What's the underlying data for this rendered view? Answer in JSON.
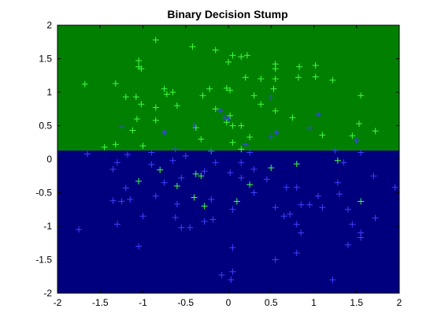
{
  "chart_data": {
    "type": "scatter",
    "title": "Binary Decision Stump",
    "xlim": [
      -2,
      2
    ],
    "ylim": [
      -2,
      2
    ],
    "x_ticks": [
      -2,
      -1.5,
      -1,
      -0.5,
      0,
      0.5,
      1,
      1.5,
      2
    ],
    "y_ticks": [
      -2,
      -1.5,
      -1,
      -0.5,
      0,
      0.5,
      1,
      1.5,
      2
    ],
    "x_tick_labels": [
      "-2",
      "-1.5",
      "-1",
      "-0.5",
      "0",
      "0.5",
      "1",
      "1.5",
      "2"
    ],
    "y_tick_labels": [
      "-2",
      "-1.5",
      "-1",
      "-0.5",
      "0",
      "0.5",
      "1",
      "1.5",
      "2"
    ],
    "marker": "+",
    "grid": false,
    "decision_threshold_y": 0.13,
    "regions": [
      {
        "y_range": [
          0.13,
          2
        ],
        "color": "#007f00"
      },
      {
        "y_range": [
          -2,
          0.13
        ],
        "color": "#00007f"
      }
    ],
    "series": [
      {
        "color": "#40ff40",
        "points": [
          [
            -0.85,
            1.78
          ],
          [
            -0.42,
            1.68
          ],
          [
            -0.15,
            1.63
          ],
          [
            0.0,
            1.45
          ],
          [
            0.05,
            1.55
          ],
          [
            0.15,
            1.53
          ],
          [
            0.22,
            1.55
          ],
          [
            -1.05,
            1.47
          ],
          [
            -1.05,
            1.38
          ],
          [
            -1.02,
            1.35
          ],
          [
            0.55,
            1.42
          ],
          [
            0.55,
            1.35
          ],
          [
            0.83,
            1.38
          ],
          [
            1.02,
            1.4
          ],
          [
            -1.68,
            1.12
          ],
          [
            -1.32,
            1.13
          ],
          [
            0.2,
            1.22
          ],
          [
            0.38,
            1.2
          ],
          [
            0.55,
            1.2
          ],
          [
            0.82,
            1.22
          ],
          [
            1.02,
            1.23
          ],
          [
            1.22,
            1.18
          ],
          [
            -0.75,
            1.05
          ],
          [
            -0.65,
            1.0
          ],
          [
            -0.22,
            1.05
          ],
          [
            -0.02,
            1.06
          ],
          [
            0.02,
            1.03
          ],
          [
            0.53,
            1.05
          ],
          [
            -0.72,
            0.97
          ],
          [
            -1.2,
            0.93
          ],
          [
            -1.08,
            0.93
          ],
          [
            -0.3,
            0.95
          ],
          [
            0.3,
            0.95
          ],
          [
            1.55,
            0.95
          ],
          [
            -1.02,
            0.82
          ],
          [
            -0.6,
            0.8
          ],
          [
            0.38,
            0.82
          ],
          [
            -0.85,
            0.77
          ],
          [
            -0.15,
            0.75
          ],
          [
            0.55,
            0.72
          ],
          [
            0.02,
            0.65
          ],
          [
            -1.07,
            0.6
          ],
          [
            -0.85,
            0.58
          ],
          [
            -0.02,
            0.55
          ],
          [
            0.05,
            0.5
          ],
          [
            -0.38,
            0.47
          ],
          [
            0.15,
            0.5
          ],
          [
            0.75,
            0.62
          ],
          [
            1.53,
            0.53
          ],
          [
            -1.12,
            0.43
          ],
          [
            -0.32,
            0.3
          ],
          [
            0.05,
            0.25
          ],
          [
            0.25,
            0.33
          ],
          [
            1.1,
            0.36
          ],
          [
            1.45,
            0.35
          ],
          [
            1.72,
            0.42
          ],
          [
            -1.45,
            0.18
          ],
          [
            -1.32,
            0.22
          ],
          [
            -1.0,
            0.2
          ],
          [
            -0.2,
            0.12
          ],
          [
            0.15,
            0.15
          ],
          [
            -0.8,
            -0.16
          ],
          [
            -0.38,
            -0.22
          ],
          [
            -0.32,
            -0.25
          ],
          [
            0.5,
            -0.13
          ],
          [
            0.8,
            -0.07
          ],
          [
            -1.05,
            -0.33
          ],
          [
            -0.6,
            -0.4
          ],
          [
            0.25,
            -0.38
          ],
          [
            -0.4,
            -0.57
          ],
          [
            -0.28,
            -0.7
          ],
          [
            0.1,
            -0.63
          ],
          [
            1.55,
            -0.63
          ],
          [
            1.28,
            -0.02
          ]
        ]
      },
      {
        "color": "#4040ff",
        "points": [
          [
            0.5,
            0.92
          ],
          [
            1.05,
            0.67
          ],
          [
            -0.1,
            0.72
          ],
          [
            0.0,
            0.6
          ],
          [
            -0.05,
            0.62
          ],
          [
            -1.25,
            0.48
          ],
          [
            0.95,
            0.47
          ],
          [
            -0.4,
            0.5
          ],
          [
            -0.75,
            0.4
          ],
          [
            0.5,
            0.33
          ],
          [
            0.56,
            0.4
          ],
          [
            0.2,
            0.22
          ],
          [
            -0.62,
            0.15
          ],
          [
            -0.9,
            0.1
          ],
          [
            -0.2,
            0.12
          ],
          [
            1.25,
            0.13
          ],
          [
            1.5,
            0.27
          ],
          [
            1.55,
            0.1
          ],
          [
            -1.65,
            0.08
          ],
          [
            -1.18,
            0.07
          ],
          [
            -0.5,
            0.05
          ],
          [
            0.25,
            0.1
          ],
          [
            -1.3,
            -0.05
          ],
          [
            -0.9,
            -0.08
          ],
          [
            -0.65,
            -0.02
          ],
          [
            -0.15,
            -0.05
          ],
          [
            0.15,
            -0.05
          ],
          [
            1.35,
            -0.05
          ],
          [
            -1.35,
            -0.15
          ],
          [
            -0.28,
            -0.18
          ],
          [
            0.02,
            -0.2
          ],
          [
            0.3,
            -0.15
          ],
          [
            -0.55,
            -0.28
          ],
          [
            0.15,
            -0.28
          ],
          [
            0.45,
            -0.3
          ],
          [
            -0.75,
            -0.35
          ],
          [
            -1.2,
            -0.43
          ],
          [
            0.68,
            -0.42
          ],
          [
            0.8,
            -0.42
          ],
          [
            1.28,
            -0.35
          ],
          [
            1.7,
            -0.25
          ],
          [
            1.95,
            -0.42
          ],
          [
            -0.85,
            -0.55
          ],
          [
            -1.35,
            -0.62
          ],
          [
            -1.25,
            -0.63
          ],
          [
            -1.15,
            -0.6
          ],
          [
            0.3,
            -0.5
          ],
          [
            1.05,
            -0.55
          ],
          [
            1.3,
            -0.52
          ],
          [
            -0.6,
            -0.67
          ],
          [
            -0.2,
            -0.6
          ],
          [
            0.05,
            -0.75
          ],
          [
            0.55,
            -0.72
          ],
          [
            0.85,
            -0.68
          ],
          [
            0.95,
            -0.68
          ],
          [
            1.1,
            -0.72
          ],
          [
            1.4,
            -0.75
          ],
          [
            -1.0,
            -0.85
          ],
          [
            -0.62,
            -0.87
          ],
          [
            -0.28,
            -0.93
          ],
          [
            -0.18,
            -0.9
          ],
          [
            0.65,
            -0.85
          ],
          [
            0.72,
            -0.82
          ],
          [
            1.72,
            -0.88
          ],
          [
            -1.3,
            -0.97
          ],
          [
            -0.55,
            -1.02
          ],
          [
            -0.45,
            -1.02
          ],
          [
            0.8,
            -0.97
          ],
          [
            1.45,
            -0.97
          ],
          [
            -1.75,
            -1.05
          ],
          [
            0.85,
            -1.1
          ],
          [
            1.55,
            -1.1
          ],
          [
            -1.05,
            -1.3
          ],
          [
            0.05,
            -1.32
          ],
          [
            1.4,
            -1.28
          ],
          [
            1.55,
            -1.17
          ],
          [
            0.8,
            -1.4
          ],
          [
            0.55,
            -1.5
          ],
          [
            -0.08,
            -1.73
          ],
          [
            0.05,
            -1.68
          ],
          [
            0.03,
            -1.8
          ],
          [
            1.22,
            -1.8
          ]
        ]
      }
    ]
  }
}
